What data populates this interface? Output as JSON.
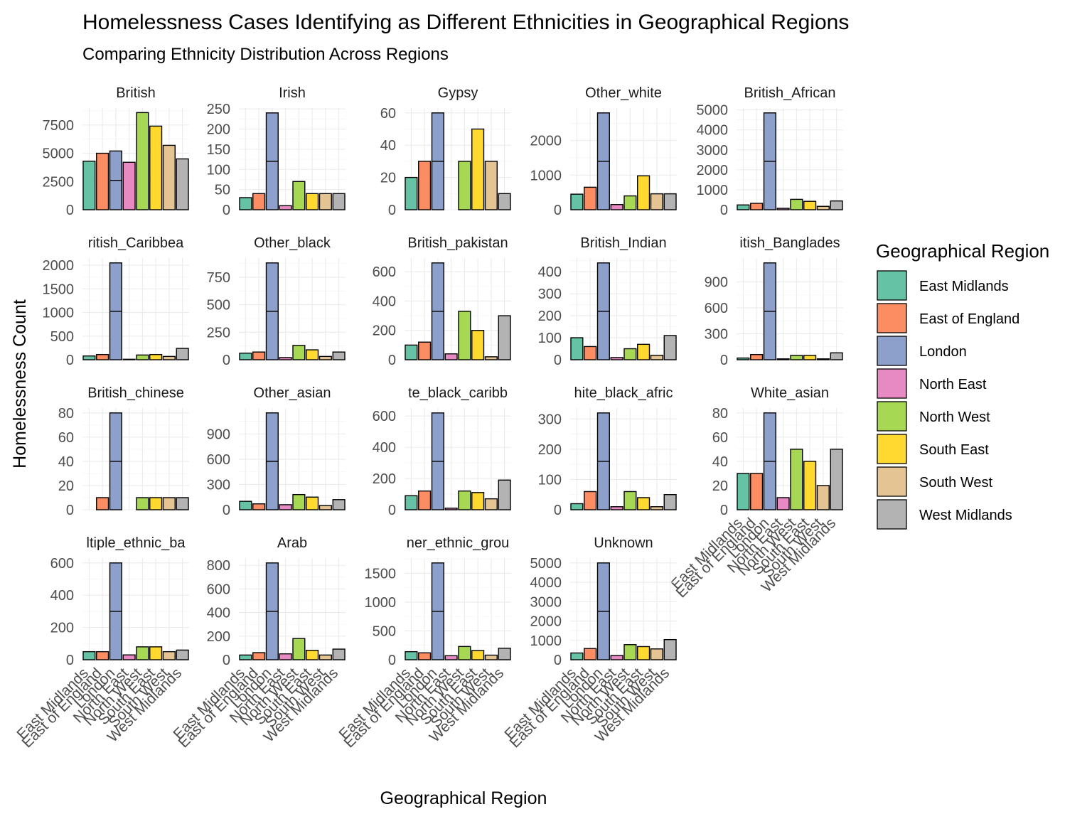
{
  "chart_data": {
    "type": "bar",
    "title": "Homelessness Cases Identifying as Different Ethnicities in Geographical Regions",
    "subtitle": "Comparing Ethnicity Distribution Across Regions",
    "xlabel": "Geographical Region",
    "ylabel": "Homelessness Count",
    "legend": {
      "title": "Geographical Region",
      "placement": "right"
    },
    "grid": true,
    "categories": [
      "East Midlands",
      "East of England",
      "London",
      "North East",
      "North West",
      "South East",
      "South West",
      "West Midlands"
    ],
    "colors": [
      "#66C2A5",
      "#FC8D62",
      "#8DA0CB",
      "#E78AC3",
      "#A6D854",
      "#FFD92F",
      "#E5C494",
      "#B3B3B3"
    ],
    "panels": [
      {
        "name": "British",
        "label": "British",
        "values": [
          4300,
          5000,
          5200,
          4200,
          8600,
          7400,
          5700,
          4500
        ],
        "ticks": [
          0,
          2500,
          5000,
          7500
        ],
        "ymax": 9000,
        "split_london": true
      },
      {
        "name": "Irish",
        "label": "Irish",
        "values": [
          30,
          40,
          240,
          10,
          70,
          40,
          40,
          40
        ],
        "ticks": [
          0,
          50,
          100,
          150,
          200,
          250
        ],
        "ymax": 252
      },
      {
        "name": "Gypsy",
        "label": "Gypsy",
        "values": [
          20,
          30,
          60,
          0,
          30,
          50,
          30,
          10
        ],
        "ticks": [
          0,
          20,
          40,
          60
        ],
        "ymax": 63
      },
      {
        "name": "Other_white",
        "label": "Other_white",
        "values": [
          450,
          650,
          2800,
          150,
          400,
          980,
          460,
          460
        ],
        "ticks": [
          0,
          1000,
          2000
        ],
        "ymax": 2940
      },
      {
        "name": "British_African",
        "label": "British_African",
        "values": [
          240,
          320,
          4850,
          70,
          520,
          420,
          170,
          440
        ],
        "ticks": [
          0,
          1000,
          2000,
          3000,
          4000,
          5000
        ],
        "ymax": 5092
      },
      {
        "name": "British_Caribbean",
        "label": "ritish_Caribbea",
        "values": [
          80,
          110,
          2050,
          10,
          100,
          110,
          70,
          240
        ],
        "ticks": [
          0,
          500,
          1000,
          1500,
          2000
        ],
        "ymax": 2152
      },
      {
        "name": "Other_black",
        "label": "Other_black",
        "values": [
          60,
          70,
          880,
          20,
          130,
          90,
          30,
          70
        ],
        "ticks": [
          0,
          250,
          500,
          750
        ],
        "ymax": 924
      },
      {
        "name": "British_pakistan",
        "label": "British_pakistan",
        "values": [
          100,
          120,
          660,
          40,
          330,
          200,
          20,
          300
        ],
        "ticks": [
          0,
          200,
          400,
          600
        ],
        "ymax": 693
      },
      {
        "name": "British_Indian",
        "label": "British_Indian",
        "values": [
          100,
          60,
          440,
          10,
          50,
          70,
          20,
          110
        ],
        "ticks": [
          0,
          100,
          200,
          300,
          400
        ],
        "ymax": 462
      },
      {
        "name": "British_Bangladeshi",
        "label": "itish_Banglades",
        "values": [
          20,
          60,
          1120,
          10,
          50,
          50,
          10,
          80
        ],
        "ticks": [
          0,
          300,
          600,
          900
        ],
        "ymax": 1176
      },
      {
        "name": "British_chinese",
        "label": "British_chinese",
        "values": [
          0,
          10,
          80,
          0,
          10,
          10,
          10,
          10
        ],
        "ticks": [
          0,
          20,
          40,
          60,
          80
        ],
        "ymax": 84
      },
      {
        "name": "Other_asian",
        "label": "Other_asian",
        "values": [
          100,
          70,
          1150,
          60,
          180,
          150,
          50,
          120
        ],
        "ticks": [
          0,
          300,
          600,
          900
        ],
        "ymax": 1207
      },
      {
        "name": "White_black_caribbean",
        "label": "te_black_caribb",
        "values": [
          90,
          120,
          620,
          10,
          120,
          110,
          70,
          190
        ],
        "ticks": [
          0,
          200,
          400,
          600
        ],
        "ymax": 651
      },
      {
        "name": "White_black_african",
        "label": "hite_black_afric",
        "values": [
          20,
          60,
          320,
          10,
          60,
          40,
          10,
          50
        ],
        "ticks": [
          0,
          100,
          200,
          300
        ],
        "ymax": 336
      },
      {
        "name": "White_asian",
        "label": "White_asian",
        "values": [
          30,
          30,
          80,
          10,
          50,
          40,
          20,
          50
        ],
        "ticks": [
          0,
          20,
          40,
          60,
          80
        ],
        "ymax": 84
      },
      {
        "name": "Multiple_ethnic_background",
        "label": "ltiple_ethnic_ba",
        "values": [
          50,
          50,
          600,
          30,
          80,
          80,
          50,
          60
        ],
        "ticks": [
          0,
          200,
          400,
          600
        ],
        "ymax": 630
      },
      {
        "name": "Arab",
        "label": "Arab",
        "values": [
          40,
          60,
          820,
          50,
          180,
          80,
          40,
          90
        ],
        "ticks": [
          0,
          200,
          400,
          600,
          800
        ],
        "ymax": 861
      },
      {
        "name": "Other_ethnic_group",
        "label": "ner_ethnic_grou",
        "values": [
          140,
          120,
          1680,
          70,
          230,
          160,
          80,
          200
        ],
        "ticks": [
          0,
          500,
          1000,
          1500
        ],
        "ymax": 1764
      },
      {
        "name": "Unknown",
        "label": "Unknown",
        "values": [
          350,
          580,
          5000,
          220,
          780,
          680,
          560,
          1040
        ],
        "ticks": [
          0,
          1000,
          2000,
          3000,
          4000,
          5000
        ],
        "ymax": 5250
      }
    ]
  }
}
